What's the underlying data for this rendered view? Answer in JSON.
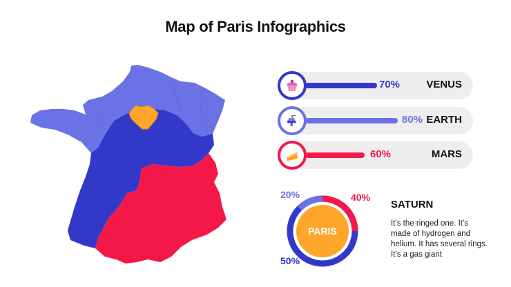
{
  "title": "Map of Paris Infographics",
  "colors": {
    "dark_blue": "#3238c8",
    "light_blue": "#6b72e6",
    "red": "#f41849",
    "orange": "#fda62a",
    "gray_bg": "#eeeeee"
  },
  "bars": [
    {
      "label": "VENUS",
      "percent_text": "70%",
      "value": 70,
      "color": "#3238c8",
      "icon": "cupcake-icon"
    },
    {
      "label": "EARTH",
      "percent_text": "80%",
      "value": 80,
      "color": "#6b72e6",
      "icon": "grapes-icon"
    },
    {
      "label": "MARS",
      "percent_text": "60%",
      "value": 60,
      "color": "#f41849",
      "icon": "cheese-icon"
    }
  ],
  "donut": {
    "center_label": "PARIS",
    "segments": [
      {
        "percent_text": "20%",
        "value": 20,
        "color": "#6b72e6"
      },
      {
        "percent_text": "40%",
        "value": 40,
        "color": "#f41849"
      },
      {
        "percent_text": "50%",
        "value": 50,
        "color": "#3238c8"
      }
    ]
  },
  "saturn": {
    "title": "SATURN",
    "description": "It’s the ringed one. It’s made of hydrogen and helium. It has several rings. It’s a gas giant"
  },
  "map": {
    "regions": [
      {
        "name": "north",
        "color": "#6b72e6"
      },
      {
        "name": "center",
        "color": "#3238c8"
      },
      {
        "name": "south",
        "color": "#f41849"
      },
      {
        "name": "paris",
        "color": "#fda62a"
      }
    ]
  }
}
